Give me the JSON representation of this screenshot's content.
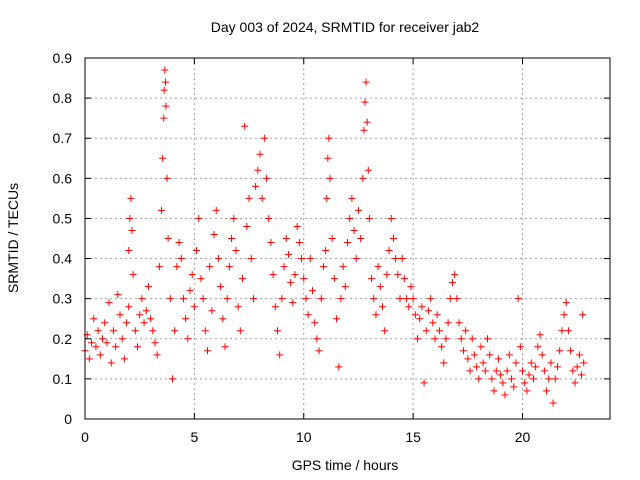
{
  "chart_data": {
    "type": "scatter",
    "title": "Day 003 of 2024, SRMTID for receiver jab2",
    "xlabel": "GPS time / hours",
    "ylabel": "SRMTID / TECUs",
    "xlim": [
      0,
      24
    ],
    "ylim": [
      0,
      0.9
    ],
    "xticks": [
      0,
      5,
      10,
      15,
      20
    ],
    "yticks": [
      0,
      0.1,
      0.2,
      0.3,
      0.4,
      0.5,
      0.6,
      0.7,
      0.8,
      0.9
    ],
    "xtick_labels": [
      "0",
      "5",
      "10",
      "15",
      "20"
    ],
    "ytick_labels": [
      "0",
      "0.1",
      "0.2",
      "0.3",
      "0.4",
      "0.5",
      "0.6",
      "0.7",
      "0.8",
      "0.9"
    ],
    "grid": true,
    "marker": "+",
    "color": "#ff0000",
    "series": [
      {
        "name": "SRMTID",
        "points": [
          [
            0.0,
            0.17
          ],
          [
            0.1,
            0.21
          ],
          [
            0.2,
            0.15
          ],
          [
            0.3,
            0.19
          ],
          [
            0.4,
            0.25
          ],
          [
            0.5,
            0.18
          ],
          [
            0.6,
            0.22
          ],
          [
            0.7,
            0.16
          ],
          [
            0.8,
            0.2
          ],
          [
            0.9,
            0.24
          ],
          [
            1.0,
            0.19
          ],
          [
            1.1,
            0.29
          ],
          [
            1.2,
            0.14
          ],
          [
            1.3,
            0.22
          ],
          [
            1.4,
            0.18
          ],
          [
            1.5,
            0.31
          ],
          [
            1.6,
            0.26
          ],
          [
            1.7,
            0.2
          ],
          [
            1.8,
            0.15
          ],
          [
            1.9,
            0.24
          ],
          [
            2.0,
            0.28
          ],
          [
            2.0,
            0.42
          ],
          [
            2.05,
            0.5
          ],
          [
            2.1,
            0.55
          ],
          [
            2.15,
            0.47
          ],
          [
            2.2,
            0.36
          ],
          [
            2.3,
            0.22
          ],
          [
            2.4,
            0.18
          ],
          [
            2.5,
            0.26
          ],
          [
            2.6,
            0.3
          ],
          [
            2.7,
            0.24
          ],
          [
            2.8,
            0.27
          ],
          [
            2.9,
            0.33
          ],
          [
            3.0,
            0.25
          ],
          [
            3.1,
            0.22
          ],
          [
            3.2,
            0.19
          ],
          [
            3.3,
            0.16
          ],
          [
            3.4,
            0.38
          ],
          [
            3.5,
            0.52
          ],
          [
            3.55,
            0.65
          ],
          [
            3.6,
            0.75
          ],
          [
            3.62,
            0.82
          ],
          [
            3.65,
            0.87
          ],
          [
            3.68,
            0.84
          ],
          [
            3.7,
            0.78
          ],
          [
            3.75,
            0.6
          ],
          [
            3.8,
            0.45
          ],
          [
            3.9,
            0.3
          ],
          [
            4.0,
            0.1
          ],
          [
            4.1,
            0.22
          ],
          [
            4.2,
            0.38
          ],
          [
            4.3,
            0.44
          ],
          [
            4.4,
            0.4
          ],
          [
            4.5,
            0.3
          ],
          [
            4.6,
            0.25
          ],
          [
            4.7,
            0.2
          ],
          [
            4.8,
            0.32
          ],
          [
            4.9,
            0.36
          ],
          [
            5.0,
            0.28
          ],
          [
            5.1,
            0.42
          ],
          [
            5.2,
            0.5
          ],
          [
            5.3,
            0.35
          ],
          [
            5.4,
            0.3
          ],
          [
            5.5,
            0.22
          ],
          [
            5.6,
            0.17
          ],
          [
            5.7,
            0.38
          ],
          [
            5.8,
            0.27
          ],
          [
            5.9,
            0.46
          ],
          [
            6.0,
            0.52
          ],
          [
            6.1,
            0.4
          ],
          [
            6.2,
            0.33
          ],
          [
            6.3,
            0.25
          ],
          [
            6.4,
            0.18
          ],
          [
            6.5,
            0.3
          ],
          [
            6.6,
            0.38
          ],
          [
            6.7,
            0.45
          ],
          [
            6.8,
            0.5
          ],
          [
            6.9,
            0.42
          ],
          [
            7.0,
            0.28
          ],
          [
            7.1,
            0.22
          ],
          [
            7.2,
            0.35
          ],
          [
            7.3,
            0.73
          ],
          [
            7.4,
            0.48
          ],
          [
            7.5,
            0.55
          ],
          [
            7.6,
            0.4
          ],
          [
            7.7,
            0.3
          ],
          [
            7.8,
            0.58
          ],
          [
            7.9,
            0.62
          ],
          [
            8.0,
            0.66
          ],
          [
            8.1,
            0.55
          ],
          [
            8.2,
            0.7
          ],
          [
            8.3,
            0.6
          ],
          [
            8.4,
            0.5
          ],
          [
            8.5,
            0.44
          ],
          [
            8.6,
            0.36
          ],
          [
            8.7,
            0.28
          ],
          [
            8.8,
            0.22
          ],
          [
            8.9,
            0.16
          ],
          [
            9.0,
            0.3
          ],
          [
            9.1,
            0.38
          ],
          [
            9.2,
            0.45
          ],
          [
            9.3,
            0.41
          ],
          [
            9.4,
            0.34
          ],
          [
            9.5,
            0.29
          ],
          [
            9.6,
            0.36
          ],
          [
            9.7,
            0.48
          ],
          [
            9.8,
            0.44
          ],
          [
            9.9,
            0.4
          ],
          [
            10.0,
            0.35
          ],
          [
            10.1,
            0.3
          ],
          [
            10.2,
            0.26
          ],
          [
            10.3,
            0.4
          ],
          [
            10.4,
            0.32
          ],
          [
            10.5,
            0.24
          ],
          [
            10.6,
            0.2
          ],
          [
            10.7,
            0.17
          ],
          [
            10.8,
            0.3
          ],
          [
            10.9,
            0.38
          ],
          [
            11.0,
            0.42
          ],
          [
            11.05,
            0.55
          ],
          [
            11.1,
            0.65
          ],
          [
            11.15,
            0.7
          ],
          [
            11.2,
            0.6
          ],
          [
            11.3,
            0.45
          ],
          [
            11.4,
            0.35
          ],
          [
            11.5,
            0.25
          ],
          [
            11.6,
            0.13
          ],
          [
            11.7,
            0.3
          ],
          [
            11.8,
            0.38
          ],
          [
            11.9,
            0.33
          ],
          [
            12.0,
            0.44
          ],
          [
            12.1,
            0.5
          ],
          [
            12.2,
            0.55
          ],
          [
            12.3,
            0.47
          ],
          [
            12.4,
            0.4
          ],
          [
            12.5,
            0.52
          ],
          [
            12.6,
            0.45
          ],
          [
            12.7,
            0.6
          ],
          [
            12.75,
            0.72
          ],
          [
            12.8,
            0.79
          ],
          [
            12.85,
            0.84
          ],
          [
            12.9,
            0.74
          ],
          [
            12.95,
            0.62
          ],
          [
            13.0,
            0.5
          ],
          [
            13.1,
            0.35
          ],
          [
            13.2,
            0.3
          ],
          [
            13.3,
            0.26
          ],
          [
            13.4,
            0.38
          ],
          [
            13.5,
            0.33
          ],
          [
            13.6,
            0.28
          ],
          [
            13.7,
            0.22
          ],
          [
            13.8,
            0.36
          ],
          [
            13.9,
            0.42
          ],
          [
            14.0,
            0.5
          ],
          [
            14.1,
            0.45
          ],
          [
            14.2,
            0.4
          ],
          [
            14.3,
            0.36
          ],
          [
            14.4,
            0.3
          ],
          [
            14.5,
            0.4
          ],
          [
            14.6,
            0.35
          ],
          [
            14.7,
            0.3
          ],
          [
            14.8,
            0.28
          ],
          [
            14.9,
            0.33
          ],
          [
            15.0,
            0.3
          ],
          [
            15.1,
            0.26
          ],
          [
            15.2,
            0.2
          ],
          [
            15.3,
            0.25
          ],
          [
            15.4,
            0.28
          ],
          [
            15.5,
            0.09
          ],
          [
            15.6,
            0.22
          ],
          [
            15.7,
            0.27
          ],
          [
            15.8,
            0.3
          ],
          [
            15.9,
            0.24
          ],
          [
            16.0,
            0.2
          ],
          [
            16.1,
            0.26
          ],
          [
            16.2,
            0.22
          ],
          [
            16.3,
            0.18
          ],
          [
            16.4,
            0.14
          ],
          [
            16.5,
            0.2
          ],
          [
            16.6,
            0.24
          ],
          [
            16.7,
            0.3
          ],
          [
            16.8,
            0.34
          ],
          [
            16.9,
            0.36
          ],
          [
            17.0,
            0.3
          ],
          [
            17.1,
            0.24
          ],
          [
            17.2,
            0.2
          ],
          [
            17.3,
            0.17
          ],
          [
            17.4,
            0.22
          ],
          [
            17.5,
            0.15
          ],
          [
            17.6,
            0.12
          ],
          [
            17.7,
            0.2
          ],
          [
            17.8,
            0.16
          ],
          [
            17.9,
            0.13
          ],
          [
            18.0,
            0.1
          ],
          [
            18.1,
            0.18
          ],
          [
            18.2,
            0.14
          ],
          [
            18.3,
            0.12
          ],
          [
            18.4,
            0.2
          ],
          [
            18.5,
            0.16
          ],
          [
            18.6,
            0.1
          ],
          [
            18.7,
            0.07
          ],
          [
            18.8,
            0.12
          ],
          [
            18.9,
            0.15
          ],
          [
            19.0,
            0.11
          ],
          [
            19.1,
            0.09
          ],
          [
            19.2,
            0.06
          ],
          [
            19.3,
            0.12
          ],
          [
            19.4,
            0.16
          ],
          [
            19.5,
            0.1
          ],
          [
            19.6,
            0.08
          ],
          [
            19.7,
            0.14
          ],
          [
            19.8,
            0.3
          ],
          [
            19.9,
            0.18
          ],
          [
            20.0,
            0.12
          ],
          [
            20.1,
            0.09
          ],
          [
            20.2,
            0.07
          ],
          [
            20.3,
            0.11
          ],
          [
            20.4,
            0.14
          ],
          [
            20.5,
            0.1
          ],
          [
            20.6,
            0.13
          ],
          [
            20.7,
            0.18
          ],
          [
            20.8,
            0.21
          ],
          [
            20.9,
            0.16
          ],
          [
            21.0,
            0.12
          ],
          [
            21.1,
            0.07
          ],
          [
            21.2,
            0.1
          ],
          [
            21.3,
            0.14
          ],
          [
            21.4,
            0.04
          ],
          [
            21.5,
            0.1
          ],
          [
            21.6,
            0.13
          ],
          [
            21.7,
            0.17
          ],
          [
            21.8,
            0.22
          ],
          [
            21.9,
            0.26
          ],
          [
            22.0,
            0.29
          ],
          [
            22.1,
            0.22
          ],
          [
            22.2,
            0.17
          ],
          [
            22.3,
            0.12
          ],
          [
            22.4,
            0.09
          ],
          [
            22.5,
            0.13
          ],
          [
            22.6,
            0.16
          ],
          [
            22.7,
            0.11
          ],
          [
            22.75,
            0.26
          ],
          [
            22.8,
            0.14
          ]
        ]
      }
    ]
  }
}
